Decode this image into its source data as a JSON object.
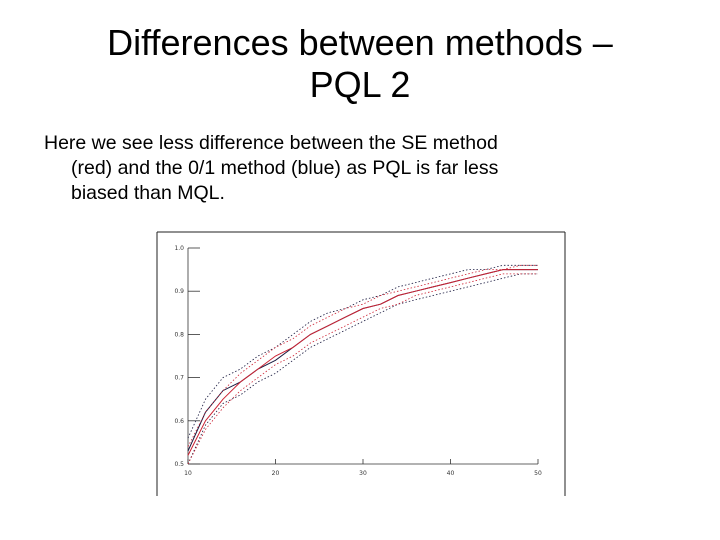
{
  "slide": {
    "title_lines": [
      "Differences between methods –",
      "PQL 2"
    ],
    "body_lines": [
      "Here we see less difference between  the SE method",
      "(red) and the 0/1 method (blue) as PQL is far less",
      "biased than MQL."
    ]
  },
  "colors": {
    "se_method": "#cc2233",
    "zero_one_method": "#1a1a40",
    "axis": "#333333"
  },
  "chart_data": {
    "type": "line",
    "title": "",
    "xlabel": "",
    "ylabel": "",
    "xlim": [
      10,
      50
    ],
    "ylim": [
      0.5,
      1.0
    ],
    "x_ticks": [
      10,
      20,
      30,
      40,
      50
    ],
    "x_tick_labels": [
      "10",
      "20",
      "30",
      "40",
      "50"
    ],
    "y_ticks": [
      0.5,
      0.6,
      0.7,
      0.8,
      0.9,
      1.0
    ],
    "y_tick_labels": [
      "0.5",
      "0.6",
      "0.7",
      "0.8",
      "0.9",
      "1.0"
    ],
    "grid": false,
    "legend": "none",
    "x": [
      10,
      12,
      14,
      16,
      18,
      20,
      22,
      24,
      26,
      28,
      30,
      32,
      34,
      36,
      38,
      40,
      42,
      44,
      46,
      48,
      50
    ],
    "series": [
      {
        "color": "#1a1a40",
        "style": "solid",
        "values": [
          0.53,
          0.62,
          0.67,
          0.69,
          0.72,
          0.74,
          0.77,
          0.8,
          0.82,
          0.84,
          0.86,
          0.87,
          0.89,
          0.9,
          0.91,
          0.92,
          0.93,
          0.94,
          0.95,
          0.95,
          0.95
        ]
      },
      {
        "color": "#1a1a40",
        "style": "dotted",
        "values": [
          0.56,
          0.65,
          0.7,
          0.72,
          0.75,
          0.77,
          0.8,
          0.83,
          0.85,
          0.86,
          0.88,
          0.89,
          0.91,
          0.92,
          0.93,
          0.94,
          0.95,
          0.95,
          0.96,
          0.96,
          0.96
        ]
      },
      {
        "color": "#1a1a40",
        "style": "dotted",
        "values": [
          0.5,
          0.59,
          0.64,
          0.66,
          0.69,
          0.71,
          0.74,
          0.77,
          0.79,
          0.81,
          0.83,
          0.85,
          0.87,
          0.88,
          0.89,
          0.9,
          0.91,
          0.92,
          0.93,
          0.94,
          0.94
        ]
      },
      {
        "color": "#cc2233",
        "style": "solid",
        "values": [
          0.52,
          0.6,
          0.65,
          0.69,
          0.72,
          0.75,
          0.77,
          0.8,
          0.82,
          0.84,
          0.86,
          0.87,
          0.89,
          0.9,
          0.91,
          0.92,
          0.93,
          0.94,
          0.95,
          0.95,
          0.95
        ]
      },
      {
        "color": "#cc2233",
        "style": "dotted",
        "values": [
          0.54,
          0.62,
          0.67,
          0.71,
          0.74,
          0.77,
          0.79,
          0.82,
          0.84,
          0.86,
          0.87,
          0.89,
          0.9,
          0.91,
          0.92,
          0.93,
          0.94,
          0.95,
          0.95,
          0.96,
          0.96
        ]
      },
      {
        "color": "#cc2233",
        "style": "dotted",
        "values": [
          0.5,
          0.58,
          0.63,
          0.67,
          0.7,
          0.73,
          0.75,
          0.78,
          0.8,
          0.82,
          0.84,
          0.86,
          0.87,
          0.89,
          0.9,
          0.91,
          0.92,
          0.93,
          0.94,
          0.94,
          0.94
        ]
      }
    ]
  }
}
